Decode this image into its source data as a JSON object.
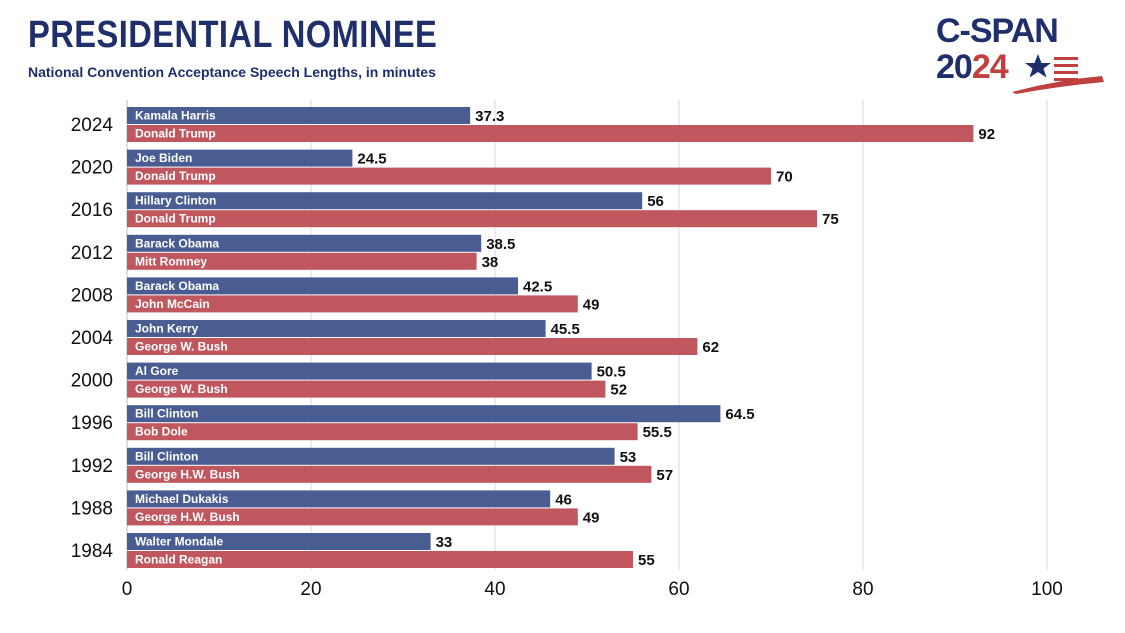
{
  "header": {
    "title": "PRESIDENTIAL NOMINEE",
    "subtitle": "National Convention Acceptance Speech Lengths, in minutes"
  },
  "logo": {
    "brand": "C-SPAN",
    "year_prefix": "20",
    "year_suffix": "24"
  },
  "colors": {
    "democrat": "#4a5d92",
    "republican": "#c0575f",
    "title": "#1f2f6b",
    "grid": "#d9d9d9"
  },
  "chart_data": {
    "type": "bar",
    "orientation": "horizontal",
    "title": "PRESIDENTIAL NOMINEE",
    "subtitle": "National Convention Acceptance Speech Lengths, in minutes",
    "xlabel": "",
    "ylabel": "",
    "xlim": [
      0,
      100
    ],
    "xticks": [
      0,
      20,
      40,
      60,
      80,
      100
    ],
    "grid": true,
    "categories": [
      "2024",
      "2020",
      "2016",
      "2012",
      "2008",
      "2004",
      "2000",
      "1996",
      "1992",
      "1988",
      "1984"
    ],
    "series": [
      {
        "party": "democrat",
        "nominees": [
          "Kamala Harris",
          "Joe Biden",
          "Hillary Clinton",
          "Barack Obama",
          "Barack Obama",
          "John Kerry",
          "Al Gore",
          "Bill Clinton",
          "Bill Clinton",
          "Michael Dukakis",
          "Walter Mondale"
        ],
        "values": [
          37.3,
          24.5,
          56,
          38.5,
          42.5,
          45.5,
          50.5,
          64.5,
          53,
          46,
          33
        ],
        "value_labels": [
          "37.3",
          "24.5",
          "56",
          "38.5",
          "42.5",
          "45.5",
          "50.5",
          "64.5",
          "53",
          "46",
          "33"
        ]
      },
      {
        "party": "republican",
        "nominees": [
          "Donald Trump",
          "Donald Trump",
          "Donald Trump",
          "Mitt Romney",
          "John McCain",
          "George W. Bush",
          "George W. Bush",
          "Bob Dole",
          "George H.W. Bush",
          "George H.W. Bush",
          "Ronald Reagan"
        ],
        "values": [
          92,
          70,
          75,
          38,
          49,
          62,
          52,
          55.5,
          57,
          49,
          55
        ],
        "value_labels": [
          "92",
          "70",
          "75",
          "38",
          "49",
          "62",
          "52",
          "55.5",
          "57",
          "49",
          "55"
        ]
      }
    ]
  }
}
